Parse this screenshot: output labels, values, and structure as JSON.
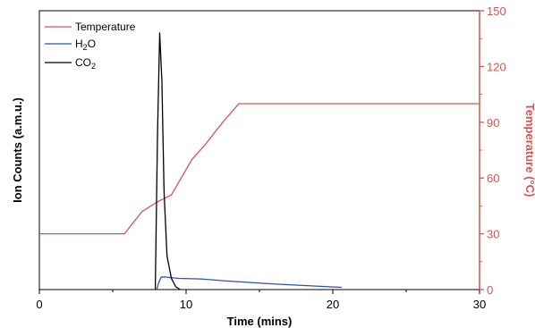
{
  "chart_data": {
    "type": "line",
    "xlabel": "Time (mins)",
    "ylabel_left": "Ion Counts (a.m.u.)",
    "ylabel_right": "Temperature (°C)",
    "xlim": [
      0,
      30
    ],
    "ylim_right": [
      0,
      150
    ],
    "x_ticks": [
      "0",
      "10",
      "20",
      "30"
    ],
    "y_right_ticks": [
      "0",
      "30",
      "60",
      "90",
      "120",
      "150"
    ],
    "grid": false,
    "legend": {
      "position": "top-left",
      "entries": [
        {
          "label": "Temperature",
          "sub": "",
          "suffix": ""
        },
        {
          "label": "H",
          "sub": "2",
          "suffix": "O"
        },
        {
          "label": "CO",
          "sub": "2",
          "suffix": ""
        }
      ]
    },
    "colors": {
      "temperature": "#d9534f",
      "h2o": "#3050b0",
      "co2": "#000000",
      "right_axis": "#d9534f"
    },
    "series": [
      {
        "name": "Temperature",
        "axis": "right",
        "x": [
          0,
          5.8,
          7.0,
          8.0,
          9.0,
          10.4,
          11.3,
          12.5,
          13.6,
          30
        ],
        "y": [
          30,
          30,
          42,
          47,
          51,
          70,
          78,
          90,
          100,
          100
        ]
      },
      {
        "name": "H2O",
        "axis": "left",
        "y_scale": [
          0,
          1
        ],
        "x": [
          8.0,
          8.1,
          8.3,
          8.6,
          9.5,
          11.0,
          13.0,
          16.0,
          19.0,
          20.6
        ],
        "y": [
          0,
          0.02,
          0.045,
          0.045,
          0.04,
          0.038,
          0.03,
          0.02,
          0.012,
          0.008
        ]
      },
      {
        "name": "CO2",
        "axis": "left",
        "y_scale": [
          0,
          1
        ],
        "x": [
          7.9,
          8.05,
          8.2,
          8.35,
          8.5,
          8.7,
          9.0,
          9.3,
          9.6
        ],
        "y": [
          0,
          0.55,
          0.92,
          0.75,
          0.35,
          0.12,
          0.04,
          0.01,
          0
        ]
      }
    ]
  }
}
